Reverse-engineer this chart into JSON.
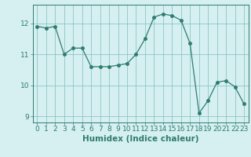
{
  "x": [
    0,
    1,
    2,
    3,
    4,
    5,
    6,
    7,
    8,
    9,
    10,
    11,
    12,
    13,
    14,
    15,
    16,
    17,
    18,
    19,
    20,
    21,
    22,
    23
  ],
  "y": [
    11.9,
    11.85,
    11.9,
    11.0,
    11.2,
    11.2,
    10.6,
    10.6,
    10.6,
    10.65,
    10.7,
    11.0,
    11.5,
    12.2,
    12.3,
    12.25,
    12.1,
    11.35,
    9.1,
    9.5,
    10.1,
    10.15,
    9.95,
    9.4
  ],
  "line_color": "#2e7d6e",
  "marker": "o",
  "marker_size": 2.5,
  "bg_color": "#d6eff0",
  "grid_color": "#7fbfbf",
  "xlabel": "Humidex (Indice chaleur)",
  "xlabel_fontsize": 7.5,
  "tick_fontsize": 6.5,
  "ylim": [
    8.8,
    12.6
  ],
  "xlim": [
    -0.5,
    23.5
  ],
  "yticks": [
    9,
    10,
    11,
    12
  ],
  "xticks": [
    0,
    1,
    2,
    3,
    4,
    5,
    6,
    7,
    8,
    9,
    10,
    11,
    12,
    13,
    14,
    15,
    16,
    17,
    18,
    19,
    20,
    21,
    22,
    23
  ]
}
